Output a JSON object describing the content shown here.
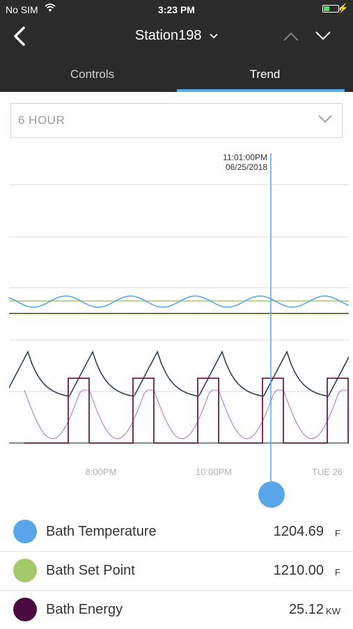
{
  "status": {
    "carrier": "No SIM",
    "time": "3:23 PM"
  },
  "nav": {
    "title": "Station198"
  },
  "tabs": [
    {
      "label": "Controls"
    },
    {
      "label": "Trend"
    }
  ],
  "range": {
    "selected": "6 HOUR"
  },
  "cursor": {
    "time": "11:01:00PM",
    "date": "06/25/2018"
  },
  "chart_data": {
    "type": "line",
    "x_tick_labels": [
      "8:00PM",
      "10:00PM",
      "TUE 26"
    ],
    "series": [
      {
        "name": "Bath Temperature",
        "color": "#5aa6ea"
      },
      {
        "name": "Bath Set Point",
        "color": "#a5c96a"
      },
      {
        "name": "Bath Energy",
        "color": "#4b0a3f"
      }
    ]
  },
  "legend": [
    {
      "name": "Bath Temperature",
      "value": "1204.69",
      "unit": "F",
      "color": "#5aa6ea"
    },
    {
      "name": "Bath Set Point",
      "value": "1210.00",
      "unit": "F",
      "color": "#a5c96a"
    },
    {
      "name": "Bath Energy",
      "value": "25.12",
      "unit": "KW",
      "color": "#4b0a3f"
    }
  ]
}
